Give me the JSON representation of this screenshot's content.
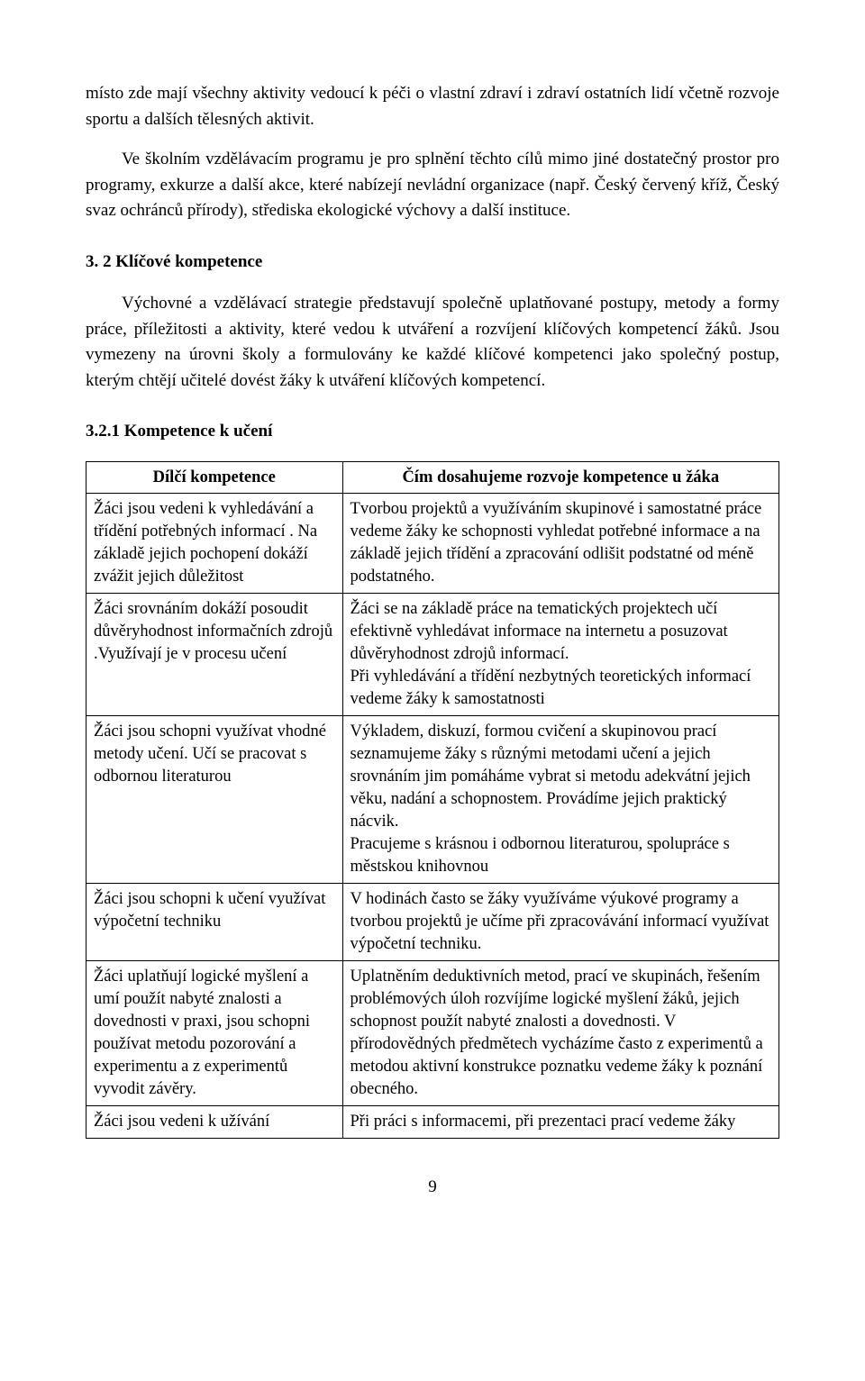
{
  "intro": {
    "p1": "místo zde mají všechny aktivity vedoucí k péči o vlastní zdraví i zdraví ostatních lidí včetně rozvoje sportu a dalších tělesných aktivit.",
    "p2": "Ve školním vzdělávacím programu je pro splnění těchto cílů mimo jiné dostatečný prostor pro programy, exkurze a další akce, které nabízejí nevládní organizace (např. Český červený kříž, Český svaz ochránců přírody), střediska ekologické výchovy a další instituce."
  },
  "s32": {
    "heading": "3. 2  Klíčové kompetence",
    "p1": "Výchovné a vzdělávací strategie představují společně uplatňované postupy, metody a formy práce, příležitosti a aktivity, které vedou k utváření a rozvíjení klíčových kompetencí žáků. Jsou vymezeny na úrovni školy a formulovány ke každé klíčové kompetenci jako společný postup, kterým chtějí učitelé dovést žáky k utváření klíčových kompetencí."
  },
  "s321_heading": "3.2.1   Kompetence k učení",
  "table": {
    "h1": "Dílčí kompetence",
    "h2": "Čím dosahujeme rozvoje kompetence u žáka",
    "rows": [
      {
        "l": "Žáci jsou vedeni k vyhledávání a třídění potřebných informací . Na základě jejich pochopení dokáží zvážit jejich důležitost",
        "r": "Tvorbou projektů a využíváním skupinové i samostatné práce vedeme žáky ke schopnosti vyhledat potřebné informace a na základě jejich třídění a zpracování odlišit podstatné od méně podstatného."
      },
      {
        "l": "Žáci  srovnáním dokáží posoudit důvěryhodnost informačních zdrojů .Využívají je v procesu učení",
        "r": "Žáci se na základě práce na tematických projektech učí efektivně vyhledávat informace na internetu a posuzovat důvěryhodnost zdrojů informací.\nPři vyhledávání a třídění nezbytných teoretických informací vedeme žáky k samostatnosti"
      },
      {
        "l": "Žáci  jsou schopni využívat vhodné metody učení. Učí se pracovat s odbornou literaturou",
        "r": "Výkladem, diskuzí, formou cvičení a skupinovou prací seznamujeme žáky s různými metodami učení a jejich srovnáním jim pomáháme vybrat si metodu adekvátní jejich věku, nadání a schopnostem. Provádíme jejich praktický nácvik.\nPracujeme s krásnou i odbornou literaturou, spolupráce s městskou knihovnou"
      },
      {
        "l": "Žáci  jsou schopni k učení využívat výpočetní techniku",
        "r": "V hodinách často se žáky využíváme výukové programy a tvorbou projektů je učíme při zpracovávání informací využívat výpočetní techniku."
      },
      {
        "l": "Žáci uplatňují logické myšlení a umí použít nabyté znalosti a dovednosti v praxi, jsou schopni používat metodu pozorování a experimentu a z experimentů vyvodit závěry.",
        "r": "Uplatněním deduktivních metod, prací ve skupinách, řešením problémových úloh rozvíjíme logické myšlení žáků, jejich schopnost použít nabyté znalosti a dovednosti. V přírodovědných předmětech vycházíme často z experimentů a metodou aktivní konstrukce poznatku vedeme žáky k poznání obecného."
      },
      {
        "l": "Žáci jsou vedeni k užívání",
        "r": "Při práci s informacemi, při prezentaci prací vedeme žáky"
      }
    ]
  },
  "page": "9"
}
